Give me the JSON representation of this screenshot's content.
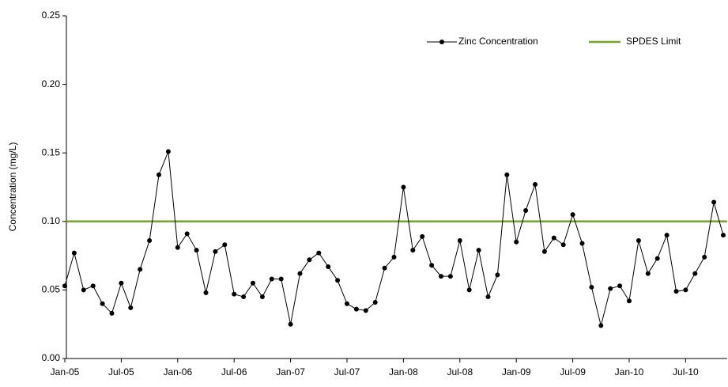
{
  "chart_data": {
    "type": "line",
    "y_label": "Concentration (mg/L)",
    "categories": [
      "Jan-05",
      null,
      null,
      null,
      null,
      null,
      "Jul-05",
      null,
      null,
      null,
      null,
      null,
      "Jan-06",
      null,
      null,
      null,
      null,
      null,
      "Jul-06",
      null,
      null,
      null,
      null,
      null,
      "Jan-07",
      null,
      null,
      null,
      null,
      null,
      "Jul-07",
      null,
      null,
      null,
      null,
      null,
      "Jan-08",
      null,
      null,
      null,
      null,
      null,
      "Jul-08",
      null,
      null,
      null,
      null,
      null,
      "Jan-09",
      null,
      null,
      null,
      null,
      null,
      "Jul-09",
      null,
      null,
      null,
      null,
      null,
      "Jan-10",
      null,
      null,
      null,
      null,
      null,
      "Jul-10",
      null,
      null,
      null,
      null
    ],
    "series": [
      {
        "name": "Zinc Concentration",
        "color": "#000000",
        "values": [
          0.053,
          0.077,
          0.05,
          0.053,
          0.04,
          0.033,
          0.055,
          0.037,
          0.065,
          0.086,
          0.134,
          0.151,
          0.081,
          0.091,
          0.079,
          0.048,
          0.078,
          0.083,
          0.047,
          0.045,
          0.055,
          0.045,
          0.058,
          0.058,
          0.025,
          0.062,
          0.072,
          0.077,
          0.067,
          0.057,
          0.04,
          0.036,
          0.035,
          0.041,
          0.066,
          0.074,
          0.125,
          0.079,
          0.089,
          0.068,
          0.06,
          0.06,
          0.086,
          0.05,
          0.079,
          0.045,
          0.061,
          0.134,
          0.085,
          0.108,
          0.127,
          0.078,
          0.088,
          0.083,
          0.105,
          0.084,
          0.052,
          0.024,
          0.051,
          0.053,
          0.042,
          0.086,
          0.062,
          0.073,
          0.09,
          0.049,
          0.05,
          0.062,
          0.074,
          0.114,
          0.09
        ]
      }
    ],
    "limit": {
      "name": "SPDES Limit",
      "color": "#76a32b",
      "value": 0.1
    },
    "ylim": [
      0,
      0.25
    ],
    "yticks": [
      {
        "value": 0,
        "label": "0.00"
      },
      {
        "value": 0.05,
        "label": "0.05"
      },
      {
        "value": 0.1,
        "label": "0.10"
      },
      {
        "value": 0.15,
        "label": "0.15"
      },
      {
        "value": 0.2,
        "label": "0.20"
      },
      0.25
    ],
    "legend": "top-right"
  }
}
